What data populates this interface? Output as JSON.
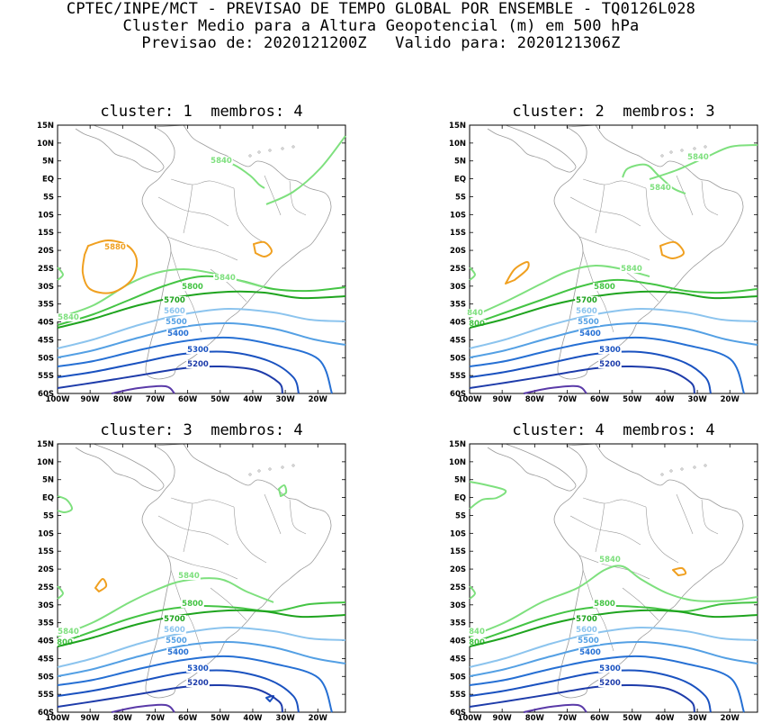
{
  "header": {
    "line1": "CPTEC/INPE/MCT - PREVISAO DE TEMPO GLOBAL POR ENSEMBLE - TQ0126L028",
    "line2": "Cluster Medio para a Altura Geopotencial (m) em 500 hPa",
    "line3": "Previsao de: 2020121200Z   Valido para: 2020121306Z"
  },
  "axes": {
    "lat_labels": [
      "15N",
      "10N",
      "5N",
      "EQ",
      "5S",
      "10S",
      "15S",
      "20S",
      "25S",
      "30S",
      "35S",
      "40S",
      "45S",
      "50S",
      "55S",
      "60S"
    ],
    "lon_labels": [
      "100W",
      "90W",
      "80W",
      "70W",
      "60W",
      "50W",
      "40W",
      "30W",
      "20W"
    ]
  },
  "colors": {
    "c5840": "#7ee07e",
    "c5800": "#44c444",
    "c5700": "#1fa41f",
    "c5600": "#8cc4ee",
    "c5500": "#54a0e4",
    "c5400": "#2670d4",
    "c5300": "#1a52c0",
    "c5200": "#1e3caa",
    "c5100": "#5a3aa8",
    "c5880": "#f0a020",
    "coast": "#9a9a9a"
  },
  "panels": [
    {
      "title": "cluster: 1  membros: 4",
      "labels": {
        "l5880": "5880",
        "l5840a": "5840",
        "l5840b": "5840",
        "l5840c": "5840",
        "l5800": "5800",
        "l5700": "5700",
        "l5600": "5600",
        "l5500": "5500",
        "l5400": "5400",
        "l5300": "5300",
        "l5200": "5200"
      }
    },
    {
      "title": "cluster: 2  membros: 3",
      "labels": {
        "l5840a": "5840",
        "l5840b": "5840",
        "l5840c": "5840",
        "l5840d": "840",
        "l5800": "5800",
        "l5800b": "800",
        "l5700": "5700",
        "l5600": "5600",
        "l5500": "5500",
        "l5400": "5400",
        "l5300": "5300",
        "l5200": "5200"
      }
    },
    {
      "title": "cluster: 3  membros: 4",
      "labels": {
        "l5840a": "5840",
        "l5840b": "5840",
        "l5800": "5800",
        "l5800b": "800",
        "l5700": "5700",
        "l5600": "5600",
        "l5500": "5500",
        "l5400": "5400",
        "l5300": "5300",
        "l5200": "5200"
      }
    },
    {
      "title": "cluster: 4  membros: 4",
      "labels": {
        "l5840a": "5840",
        "l5840b": "840",
        "l5800": "5800",
        "l5800b": "800",
        "l5700": "5700",
        "l5600": "5600",
        "l5500": "5500",
        "l5400": "5400",
        "l5300": "5300",
        "l5200": "5200"
      }
    }
  ]
}
